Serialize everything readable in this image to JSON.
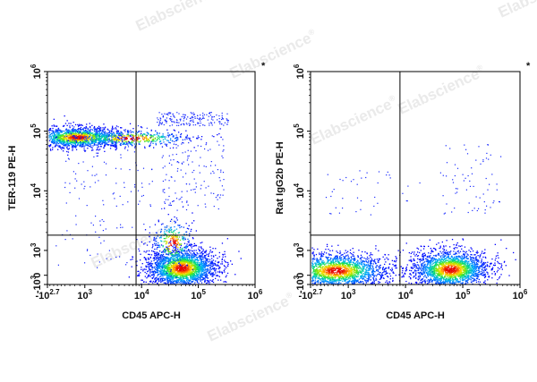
{
  "watermark": {
    "text": "Elabscience",
    "mark": "®"
  },
  "chart_data": [
    {
      "type": "scatter",
      "style": "flow-cytometry-density-dot-plot",
      "xlabel": "CD45 APC-H",
      "ylabel": "TER-119 PE-H",
      "x_scale": "biexponential",
      "y_scale": "biexponential",
      "x_ticks": [
        {
          "label": "-10",
          "exp": "2.7"
        },
        {
          "label": "10",
          "exp": "3"
        },
        {
          "label": "10",
          "exp": "4"
        },
        {
          "label": "10",
          "exp": "5"
        },
        {
          "label": "10",
          "exp": "6"
        }
      ],
      "y_ticks": [
        {
          "label": "-10",
          "exp": "3"
        },
        {
          "label": "0",
          "exp": ""
        },
        {
          "label": "10",
          "exp": "3"
        },
        {
          "label": "10",
          "exp": "4"
        },
        {
          "label": "10",
          "exp": "5"
        },
        {
          "label": "10",
          "exp": "6"
        }
      ],
      "gate": {
        "x": 8000,
        "y": 1800
      },
      "corner_mark": "*",
      "populations": [
        {
          "name": "",
          "x_center": 700,
          "y_center": 80000,
          "count": 1500
        },
        {
          "name": "",
          "x_center": 50000,
          "y_center": 300,
          "count": 2300
        }
      ],
      "colors": {
        "low": "#0000ff",
        "mid": "#00ff00",
        "high": "#ff0000"
      }
    },
    {
      "type": "scatter",
      "style": "flow-cytometry-density-dot-plot",
      "xlabel": "CD45 APC-H",
      "ylabel": "Rat IgG2b PE-H",
      "x_scale": "biexponential",
      "y_scale": "biexponential",
      "x_ticks": [
        {
          "label": "-10",
          "exp": "2.7"
        },
        {
          "label": "10",
          "exp": "3"
        },
        {
          "label": "10",
          "exp": "4"
        },
        {
          "label": "10",
          "exp": "5"
        },
        {
          "label": "10",
          "exp": "6"
        }
      ],
      "y_ticks": [
        {
          "label": "-10",
          "exp": "3"
        },
        {
          "label": "0",
          "exp": ""
        },
        {
          "label": "10",
          "exp": "3"
        },
        {
          "label": "10",
          "exp": "4"
        },
        {
          "label": "10",
          "exp": "5"
        },
        {
          "label": "10",
          "exp": "6"
        }
      ],
      "gate": {
        "x": 8000,
        "y": 1800
      },
      "corner_mark": "*",
      "populations": [
        {
          "name": "",
          "x_center": 500,
          "y_center": 200,
          "count": 2000
        },
        {
          "name": "",
          "x_center": 60000,
          "y_center": 250,
          "count": 2000
        }
      ],
      "colors": {
        "low": "#0000ff",
        "mid": "#00ff00",
        "high": "#ff0000"
      }
    }
  ]
}
